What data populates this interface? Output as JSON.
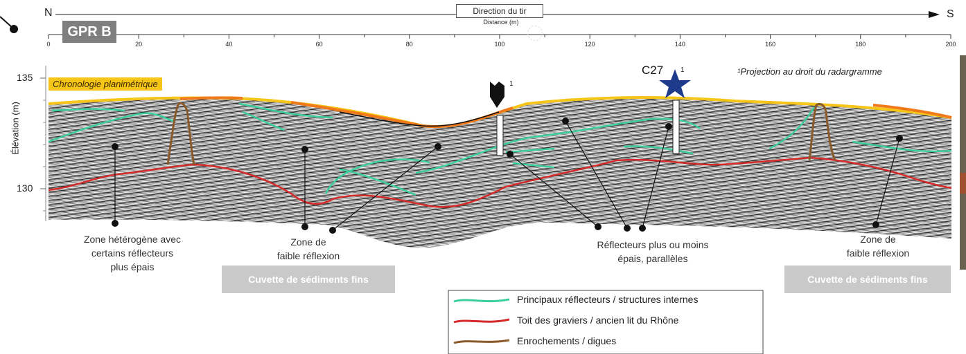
{
  "header": {
    "north": "N",
    "south": "S",
    "direction_label": "Direction du tir",
    "distance_label": "Distance (m)",
    "profile_badge": "GPR B"
  },
  "distance_ticks": [
    "0",
    "20",
    "40",
    "60",
    "80",
    "100",
    "120",
    "140",
    "160",
    "180",
    "200"
  ],
  "elevation": {
    "axis_label": "Élévation (m)",
    "ticks": [
      "135",
      "130"
    ]
  },
  "annotations": {
    "chronologie": "Chronologie planimétrique",
    "projection_note": "¹Projection au droit du radargramme",
    "c27_label": "C27",
    "c27_sup": "1",
    "marker_sup": "1"
  },
  "zones": [
    {
      "lines": [
        "Zone hétérogène avec",
        "certains réflecteurs",
        "plus épais"
      ]
    },
    {
      "lines": [
        "Zone de",
        "faible réflexion"
      ]
    },
    {
      "lines": [
        "Réflecteurs plus ou moins",
        "épais, parallèles"
      ]
    },
    {
      "lines": [
        "Zone de",
        "faible réflexion"
      ]
    }
  ],
  "cuvettes": [
    "Cuvette de sédiments fins",
    "Cuvette de sédiments fins"
  ],
  "legend": [
    {
      "label": "Principaux réflecteurs / structures internes",
      "color": "#3ccf9a"
    },
    {
      "label": "Toit des graviers / ancien lit du Rhône",
      "color": "#d42a2a"
    },
    {
      "label": "Enrochements / digues",
      "color": "#8a5a2b"
    }
  ],
  "colors": {
    "surface_yellow": "#f5c518",
    "surface_orange": "#f07a1a",
    "radar_gray": "#8c8c8c",
    "star_blue": "#1e3a8a",
    "badge_gray": "#7f7f7f"
  }
}
